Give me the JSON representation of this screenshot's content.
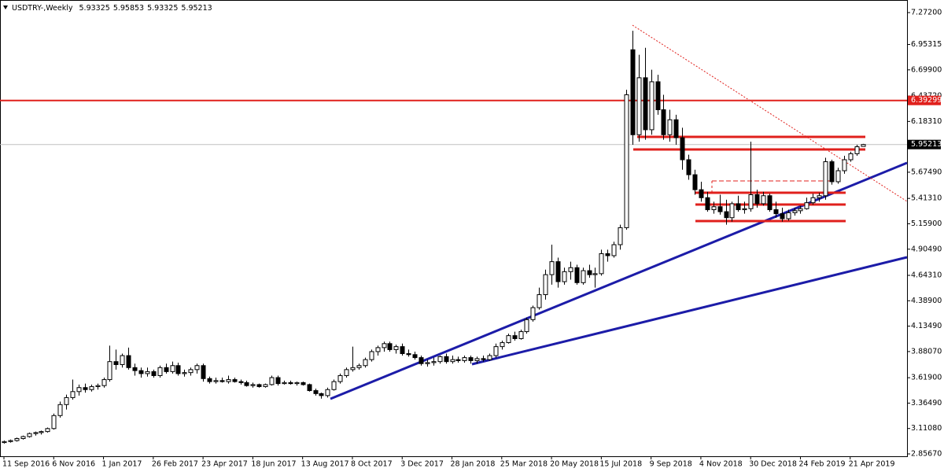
{
  "chart_data": {
    "type": "candlestick",
    "title": "USDTRY-,Weekly",
    "ylim": [
      2.833,
      7.398
    ],
    "yticks": [
      {
        "value": 7.272,
        "label": "7.27200"
      },
      {
        "value": 6.95315,
        "label": "6.95315"
      },
      {
        "value": 6.699,
        "label": "6.69900"
      },
      {
        "value": 6.4372,
        "label": "6.43720"
      },
      {
        "value": 6.1831,
        "label": "6.18310"
      },
      {
        "value": 5.6749,
        "label": "5.67490"
      },
      {
        "value": 5.4131,
        "label": "5.41310"
      },
      {
        "value": 5.159,
        "label": "5.15900"
      },
      {
        "value": 4.9049,
        "label": "4.90490"
      },
      {
        "value": 4.6431,
        "label": "4.64310"
      },
      {
        "value": 4.389,
        "label": "4.38900"
      },
      {
        "value": 4.1349,
        "label": "4.13490"
      },
      {
        "value": 3.8807,
        "label": "3.88070"
      },
      {
        "value": 3.619,
        "label": "3.61900"
      },
      {
        "value": 3.3649,
        "label": "3.36490"
      },
      {
        "value": 3.1108,
        "label": "3.11080"
      },
      {
        "value": 2.8567,
        "label": "2.85670"
      }
    ],
    "grid": false,
    "up_color": "#ffffff",
    "down_color": "#000000",
    "levels": [
      6.39299
    ],
    "level_color": "#e0201c",
    "categories": [
      "11 Sep 2016",
      null,
      null,
      null,
      null,
      null,
      null,
      null,
      "6 Nov 2016",
      null,
      null,
      null,
      null,
      null,
      null,
      null,
      "1 Jan 2017",
      null,
      null,
      null,
      null,
      null,
      null,
      null,
      "26 Feb 2017",
      null,
      null,
      null,
      null,
      null,
      null,
      null,
      "23 Apr 2017",
      null,
      null,
      null,
      null,
      null,
      null,
      null,
      "18 Jun 2017",
      null,
      null,
      null,
      null,
      null,
      null,
      null,
      "13 Aug 2017",
      null,
      null,
      null,
      null,
      null,
      null,
      null,
      "8 Oct 2017",
      null,
      null,
      null,
      null,
      null,
      null,
      null,
      "3 Dec 2017",
      null,
      null,
      null,
      null,
      null,
      null,
      null,
      "28 Jan 2018",
      null,
      null,
      null,
      null,
      null,
      null,
      null,
      "25 Mar 2018",
      null,
      null,
      null,
      null,
      null,
      null,
      null,
      "20 May 2018",
      null,
      null,
      null,
      null,
      null,
      null,
      null,
      "15 Jul 2018",
      null,
      null,
      null,
      null,
      null,
      null,
      null,
      "9 Sep 2018",
      null,
      null,
      null,
      null,
      null,
      null,
      null,
      "4 Nov 2018",
      null,
      null,
      null,
      null,
      null,
      null,
      null,
      "30 Dec 2018",
      null,
      null,
      null,
      null,
      null,
      null,
      null,
      "24 Feb 2019",
      null,
      null,
      null,
      null,
      null,
      null,
      null,
      "21 Apr 2019",
      null,
      null
    ],
    "ohlc": [
      [
        2.97,
        2.99,
        2.96,
        2.98
      ],
      [
        2.98,
        3.0,
        2.97,
        2.99
      ],
      [
        2.99,
        3.02,
        2.98,
        3.01
      ],
      [
        3.01,
        3.04,
        3.0,
        3.03
      ],
      [
        3.03,
        3.07,
        3.02,
        3.06
      ],
      [
        3.06,
        3.08,
        3.04,
        3.07
      ],
      [
        3.07,
        3.09,
        3.05,
        3.08
      ],
      [
        3.08,
        3.12,
        3.07,
        3.11
      ],
      [
        3.11,
        3.26,
        3.1,
        3.24
      ],
      [
        3.24,
        3.38,
        3.22,
        3.35
      ],
      [
        3.35,
        3.45,
        3.3,
        3.42
      ],
      [
        3.42,
        3.6,
        3.4,
        3.48
      ],
      [
        3.48,
        3.55,
        3.44,
        3.52
      ],
      [
        3.52,
        3.56,
        3.47,
        3.5
      ],
      [
        3.5,
        3.55,
        3.48,
        3.53
      ],
      [
        3.53,
        3.56,
        3.5,
        3.54
      ],
      [
        3.54,
        3.62,
        3.52,
        3.6
      ],
      [
        3.6,
        3.94,
        3.58,
        3.78
      ],
      [
        3.78,
        3.9,
        3.7,
        3.75
      ],
      [
        3.75,
        3.86,
        3.72,
        3.84
      ],
      [
        3.84,
        3.92,
        3.7,
        3.72
      ],
      [
        3.72,
        3.76,
        3.64,
        3.69
      ],
      [
        3.69,
        3.72,
        3.62,
        3.66
      ],
      [
        3.66,
        3.72,
        3.63,
        3.68
      ],
      [
        3.68,
        3.7,
        3.62,
        3.64
      ],
      [
        3.64,
        3.74,
        3.62,
        3.72
      ],
      [
        3.72,
        3.76,
        3.66,
        3.68
      ],
      [
        3.68,
        3.78,
        3.66,
        3.74
      ],
      [
        3.74,
        3.77,
        3.64,
        3.66
      ],
      [
        3.66,
        3.7,
        3.63,
        3.67
      ],
      [
        3.67,
        3.72,
        3.64,
        3.7
      ],
      [
        3.7,
        3.76,
        3.66,
        3.74
      ],
      [
        3.74,
        3.76,
        3.58,
        3.61
      ],
      [
        3.61,
        3.63,
        3.56,
        3.58
      ],
      [
        3.58,
        3.62,
        3.56,
        3.59
      ],
      [
        3.59,
        3.62,
        3.57,
        3.58
      ],
      [
        3.58,
        3.64,
        3.56,
        3.6
      ],
      [
        3.6,
        3.62,
        3.57,
        3.58
      ],
      [
        3.58,
        3.6,
        3.55,
        3.57
      ],
      [
        3.57,
        3.59,
        3.53,
        3.54
      ],
      [
        3.54,
        3.57,
        3.52,
        3.55
      ],
      [
        3.55,
        3.56,
        3.52,
        3.53
      ],
      [
        3.53,
        3.56,
        3.52,
        3.55
      ],
      [
        3.55,
        3.64,
        3.54,
        3.62
      ],
      [
        3.62,
        3.64,
        3.54,
        3.56
      ],
      [
        3.56,
        3.59,
        3.55,
        3.57
      ],
      [
        3.57,
        3.59,
        3.55,
        3.56
      ],
      [
        3.56,
        3.58,
        3.54,
        3.57
      ],
      [
        3.57,
        3.58,
        3.54,
        3.55
      ],
      [
        3.55,
        3.56,
        3.48,
        3.49
      ],
      [
        3.49,
        3.51,
        3.44,
        3.46
      ],
      [
        3.46,
        3.47,
        3.41,
        3.44
      ],
      [
        3.44,
        3.52,
        3.42,
        3.5
      ],
      [
        3.5,
        3.6,
        3.49,
        3.58
      ],
      [
        3.58,
        3.66,
        3.56,
        3.64
      ],
      [
        3.64,
        3.72,
        3.62,
        3.7
      ],
      [
        3.7,
        3.93,
        3.68,
        3.72
      ],
      [
        3.72,
        3.76,
        3.7,
        3.74
      ],
      [
        3.74,
        3.82,
        3.72,
        3.8
      ],
      [
        3.8,
        3.9,
        3.78,
        3.88
      ],
      [
        3.88,
        3.94,
        3.84,
        3.92
      ],
      [
        3.92,
        3.98,
        3.88,
        3.96
      ],
      [
        3.96,
        3.98,
        3.88,
        3.9
      ],
      [
        3.9,
        3.95,
        3.86,
        3.93
      ],
      [
        3.93,
        3.96,
        3.84,
        3.86
      ],
      [
        3.86,
        3.9,
        3.83,
        3.85
      ],
      [
        3.85,
        3.88,
        3.8,
        3.82
      ],
      [
        3.82,
        3.84,
        3.74,
        3.76
      ],
      [
        3.76,
        3.8,
        3.73,
        3.77
      ],
      [
        3.77,
        3.82,
        3.74,
        3.78
      ],
      [
        3.78,
        3.84,
        3.76,
        3.83
      ],
      [
        3.83,
        3.86,
        3.76,
        3.78
      ],
      [
        3.78,
        3.84,
        3.76,
        3.8
      ],
      [
        3.8,
        3.83,
        3.77,
        3.79
      ],
      [
        3.79,
        3.84,
        3.77,
        3.82
      ],
      [
        3.82,
        3.84,
        3.76,
        3.79
      ],
      [
        3.79,
        3.83,
        3.76,
        3.81
      ],
      [
        3.81,
        3.84,
        3.78,
        3.8
      ],
      [
        3.8,
        3.86,
        3.79,
        3.84
      ],
      [
        3.84,
        3.96,
        3.82,
        3.93
      ],
      [
        3.93,
        3.99,
        3.9,
        3.97
      ],
      [
        3.97,
        4.06,
        3.96,
        4.04
      ],
      [
        4.04,
        4.08,
        3.99,
        4.01
      ],
      [
        4.01,
        4.1,
        4.0,
        4.08
      ],
      [
        4.08,
        4.22,
        4.06,
        4.2
      ],
      [
        4.2,
        4.34,
        4.18,
        4.32
      ],
      [
        4.32,
        4.52,
        4.3,
        4.45
      ],
      [
        4.45,
        4.7,
        4.4,
        4.65
      ],
      [
        4.65,
        4.95,
        4.55,
        4.78
      ],
      [
        4.78,
        4.82,
        4.52,
        4.58
      ],
      [
        4.58,
        4.72,
        4.55,
        4.68
      ],
      [
        4.68,
        4.78,
        4.6,
        4.72
      ],
      [
        4.72,
        4.75,
        4.55,
        4.57
      ],
      [
        4.57,
        4.72,
        4.55,
        4.69
      ],
      [
        4.69,
        4.75,
        4.62,
        4.65
      ],
      [
        4.65,
        4.72,
        4.52,
        4.66
      ],
      [
        4.66,
        4.9,
        4.64,
        4.86
      ],
      [
        4.86,
        4.9,
        4.78,
        4.84
      ],
      [
        4.84,
        4.98,
        4.82,
        4.95
      ],
      [
        4.95,
        5.15,
        4.9,
        5.12
      ],
      [
        5.12,
        6.5,
        5.1,
        6.45
      ],
      [
        6.9,
        7.09,
        5.95,
        6.05
      ],
      [
        6.05,
        6.85,
        5.98,
        6.62
      ],
      [
        6.62,
        6.92,
        6.0,
        6.1
      ],
      [
        6.1,
        6.7,
        6.05,
        6.58
      ],
      [
        6.58,
        6.65,
        6.25,
        6.3
      ],
      [
        6.3,
        6.45,
        6.0,
        6.05
      ],
      [
        6.05,
        6.3,
        5.98,
        6.2
      ],
      [
        6.2,
        6.25,
        5.95,
        6.02
      ],
      [
        6.02,
        6.12,
        5.7,
        5.8
      ],
      [
        5.8,
        5.85,
        5.6,
        5.65
      ],
      [
        5.65,
        5.7,
        5.45,
        5.5
      ],
      [
        5.5,
        5.58,
        5.38,
        5.42
      ],
      [
        5.42,
        5.48,
        5.28,
        5.3
      ],
      [
        5.3,
        5.38,
        5.26,
        5.33
      ],
      [
        5.33,
        5.45,
        5.25,
        5.28
      ],
      [
        5.28,
        5.4,
        5.15,
        5.22
      ],
      [
        5.22,
        5.38,
        5.18,
        5.36
      ],
      [
        5.36,
        5.44,
        5.28,
        5.3
      ],
      [
        5.3,
        5.38,
        5.26,
        5.31
      ],
      [
        5.31,
        5.98,
        5.28,
        5.45
      ],
      [
        5.45,
        5.5,
        5.32,
        5.36
      ],
      [
        5.36,
        5.48,
        5.34,
        5.44
      ],
      [
        5.44,
        5.46,
        5.28,
        5.3
      ],
      [
        5.3,
        5.38,
        5.22,
        5.26
      ],
      [
        5.26,
        5.32,
        5.18,
        5.21
      ],
      [
        5.21,
        5.3,
        5.19,
        5.27
      ],
      [
        5.27,
        5.32,
        5.24,
        5.29
      ],
      [
        5.29,
        5.34,
        5.26,
        5.31
      ],
      [
        5.31,
        5.42,
        5.3,
        5.37
      ],
      [
        5.37,
        5.46,
        5.35,
        5.42
      ],
      [
        5.42,
        5.47,
        5.38,
        5.44
      ],
      [
        5.44,
        5.82,
        5.4,
        5.78
      ],
      [
        5.78,
        5.8,
        5.55,
        5.58
      ],
      [
        5.58,
        5.72,
        5.56,
        5.69
      ],
      [
        5.69,
        5.84,
        5.66,
        5.8
      ],
      [
        5.8,
        5.88,
        5.78,
        5.86
      ],
      [
        5.86,
        5.95,
        5.84,
        5.93
      ],
      [
        5.93325,
        5.95853,
        5.93325,
        5.95213
      ]
    ]
  }
}
